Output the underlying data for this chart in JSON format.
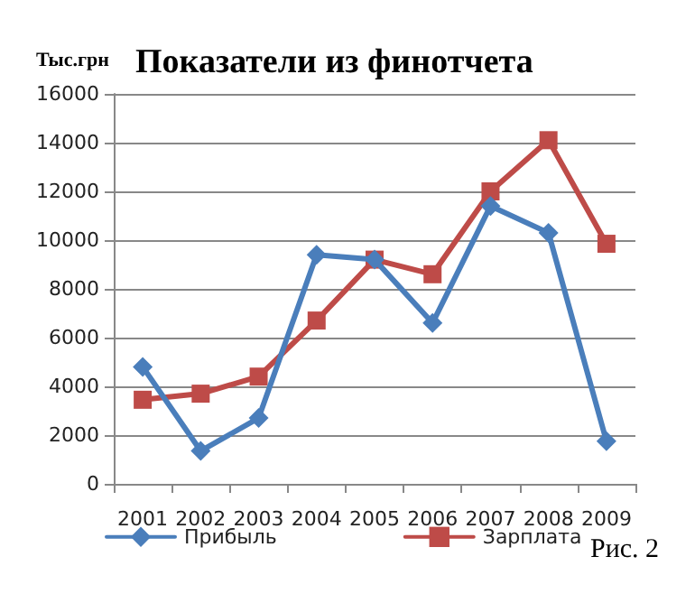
{
  "chart_data": {
    "type": "line",
    "title": "Показатели из финотчета",
    "ylabel": "Тыс.грн",
    "annotations": [
      "Рис. 2"
    ],
    "categories": [
      "2001",
      "2002",
      "2003",
      "2004",
      "2005",
      "2006",
      "2007",
      "2008",
      "2009"
    ],
    "series": [
      {
        "name": "Прибыль",
        "color": "#4a7ebb",
        "marker": "diamond",
        "values": [
          4800,
          1350,
          2700,
          9400,
          9200,
          6600,
          11400,
          10300,
          1750
        ]
      },
      {
        "name": "Зарплата",
        "color": "#be4b48",
        "marker": "square",
        "values": [
          3450,
          3700,
          4400,
          6700,
          9200,
          8600,
          12000,
          14100,
          9850
        ]
      }
    ],
    "ylim": [
      0,
      16000
    ],
    "yticks": [
      0,
      2000,
      4000,
      6000,
      8000,
      10000,
      12000,
      14000,
      16000
    ],
    "grid": "y",
    "legend": "bottom left",
    "line_style": "solid"
  }
}
